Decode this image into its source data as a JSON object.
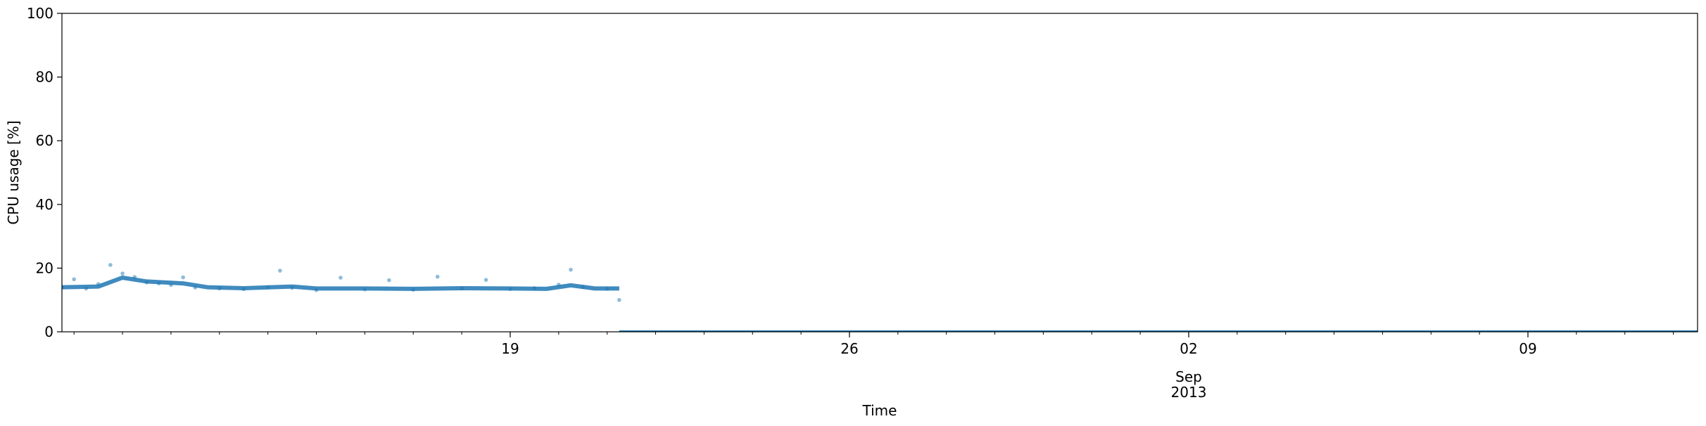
{
  "chart_data": {
    "type": "scatter",
    "title": "",
    "xlabel": "Time",
    "ylabel": "CPU usage [%]",
    "ylim": [
      0,
      100
    ],
    "xlim": [
      "2013-08-09T18:00",
      "2013-09-12T12:00"
    ],
    "x_axis_kind": "date",
    "grid": false,
    "legend": "none",
    "y_ticks": [
      0,
      20,
      40,
      60,
      80,
      100
    ],
    "x_major_ticks": [
      {
        "date": "2013-08-19",
        "label": "19"
      },
      {
        "date": "2013-08-26",
        "label": "26"
      },
      {
        "date": "2013-09-02",
        "label": "02"
      },
      {
        "date": "2013-09-09",
        "label": "09"
      }
    ],
    "x_secondary_label": {
      "date": "2013-09-02",
      "month": "Sep",
      "year": "2013"
    },
    "series": [
      {
        "kind": "scatter",
        "color": "#1f77b4",
        "alpha": 0.5,
        "points": [
          [
            "2013-08-09T18:00",
            14.0
          ],
          [
            "2013-08-10T00:00",
            16.5
          ],
          [
            "2013-08-10T06:00",
            13.6
          ],
          [
            "2013-08-10T12:00",
            15.0
          ],
          [
            "2013-08-10T18:00",
            21.0
          ],
          [
            "2013-08-11T00:00",
            18.3
          ],
          [
            "2013-08-11T06:00",
            17.2
          ],
          [
            "2013-08-11T12:00",
            15.5
          ],
          [
            "2013-08-11T18:00",
            15.2
          ],
          [
            "2013-08-12T00:00",
            14.7
          ],
          [
            "2013-08-12T06:00",
            17.1
          ],
          [
            "2013-08-12T12:00",
            13.9
          ],
          [
            "2013-08-13T00:00",
            13.6
          ],
          [
            "2013-08-13T12:00",
            13.4
          ],
          [
            "2013-08-14T00:00",
            14.0
          ],
          [
            "2013-08-14T06:00",
            19.2
          ],
          [
            "2013-08-14T12:00",
            13.8
          ],
          [
            "2013-08-15T00:00",
            13.1
          ],
          [
            "2013-08-15T12:00",
            17.0
          ],
          [
            "2013-08-16T00:00",
            13.3
          ],
          [
            "2013-08-16T12:00",
            16.2
          ],
          [
            "2013-08-17T00:00",
            13.2
          ],
          [
            "2013-08-17T12:00",
            17.3
          ],
          [
            "2013-08-18T00:00",
            13.6
          ],
          [
            "2013-08-18T12:00",
            16.3
          ],
          [
            "2013-08-19T00:00",
            13.4
          ],
          [
            "2013-08-19T12:00",
            13.7
          ],
          [
            "2013-08-20T00:00",
            14.8
          ],
          [
            "2013-08-20T06:00",
            19.5
          ],
          [
            "2013-08-20T12:00",
            14.1
          ],
          [
            "2013-08-21T00:00",
            13.5
          ],
          [
            "2013-08-21T06:00",
            10.0
          ]
        ]
      },
      {
        "kind": "line",
        "color": "#1f77b4",
        "points": [
          [
            "2013-08-09T18:00",
            14.0
          ],
          [
            "2013-08-10T12:00",
            14.2
          ],
          [
            "2013-08-11T00:00",
            17.0
          ],
          [
            "2013-08-11T12:00",
            15.8
          ],
          [
            "2013-08-12T06:00",
            15.2
          ],
          [
            "2013-08-12T18:00",
            14.0
          ],
          [
            "2013-08-13T12:00",
            13.7
          ],
          [
            "2013-08-14T12:00",
            14.2
          ],
          [
            "2013-08-15T00:00",
            13.6
          ],
          [
            "2013-08-16T00:00",
            13.6
          ],
          [
            "2013-08-17T00:00",
            13.5
          ],
          [
            "2013-08-18T00:00",
            13.7
          ],
          [
            "2013-08-19T00:00",
            13.6
          ],
          [
            "2013-08-19T18:00",
            13.5
          ],
          [
            "2013-08-20T06:00",
            14.6
          ],
          [
            "2013-08-20T18:00",
            13.6
          ],
          [
            "2013-08-21T06:00",
            13.6
          ]
        ]
      },
      {
        "kind": "line",
        "color": "#1f77b4",
        "points": [
          [
            "2013-08-21T06:00",
            0.1
          ],
          [
            "2013-09-12T12:00",
            0.1
          ]
        ]
      }
    ]
  }
}
